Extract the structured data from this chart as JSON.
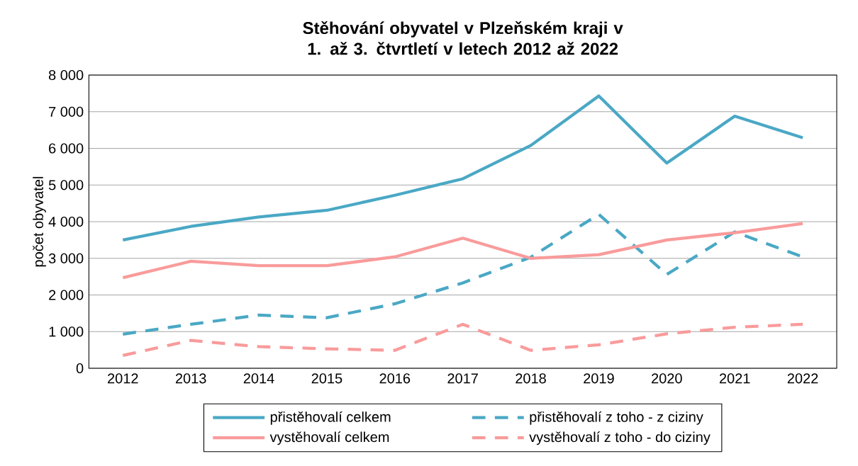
{
  "chart_data": {
    "type": "line",
    "title": "Stěhování obyvatel v Plzeňském kraji v 1. až 3. čtvrtletí v letech 2012  až 2022",
    "ylabel": "počet obyvatel",
    "categories": [
      "2012",
      "2013",
      "2014",
      "2015",
      "2016",
      "2017",
      "2018",
      "2019",
      "2020",
      "2021",
      "2022"
    ],
    "series": [
      {
        "name": "přistěhovalí celkem",
        "color": "#4aa8c5",
        "line_style": "solid",
        "values": [
          3500,
          3870,
          4130,
          4310,
          4720,
          5170,
          6080,
          7430,
          5600,
          6880,
          6290
        ]
      },
      {
        "name": "přistěhovalí z toho - z ciziny",
        "color": "#4aa8c5",
        "line_style": "dashed",
        "values": [
          930,
          1200,
          1450,
          1380,
          1760,
          2330,
          3030,
          4200,
          2560,
          3720,
          3040
        ]
      },
      {
        "name": "vystěhovalí celkem",
        "color": "#f99b9b",
        "line_style": "solid",
        "values": [
          2470,
          2920,
          2800,
          2800,
          3040,
          3550,
          3000,
          3100,
          3500,
          3700,
          3950
        ]
      },
      {
        "name": "vystěhovalí z toho - do ciziny",
        "color": "#f99b9b",
        "line_style": "dashed",
        "values": [
          350,
          760,
          590,
          530,
          490,
          1200,
          490,
          640,
          940,
          1120,
          1200
        ]
      }
    ],
    "ylim": [
      0,
      8000
    ],
    "yticks": [
      {
        "value": 0,
        "label": "0"
      },
      {
        "value": 1000,
        "label": "1 000"
      },
      {
        "value": 2000,
        "label": "2 000"
      },
      {
        "value": 3000,
        "label": "3 000"
      },
      {
        "value": 4000,
        "label": "4 000"
      },
      {
        "value": 5000,
        "label": "5 000"
      },
      {
        "value": 6000,
        "label": "6 000"
      },
      {
        "value": 7000,
        "label": "7 000"
      },
      {
        "value": 8000,
        "label": "8 000"
      }
    ],
    "grid": "y",
    "legend": "bottom",
    "marker": "none"
  }
}
